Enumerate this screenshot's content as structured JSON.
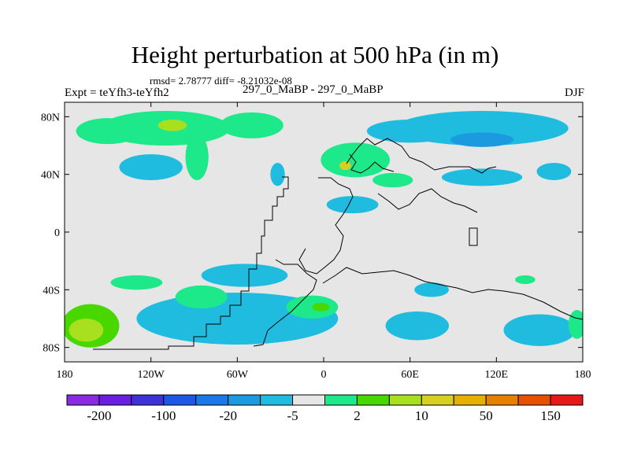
{
  "chart_data": {
    "type": "contour-map",
    "title": "Height perturbation at 500 hPa (in m)",
    "stats_text": "rmsd= 2.78777 diff= -8.21032e-08",
    "experiment_label": "Expt = teYfh3-teYfh2",
    "subtitle": "297_0_MaBP - 297_0_MaBP",
    "season": "DJF",
    "lon_range": [
      -180,
      180
    ],
    "lat_range": [
      -90,
      90
    ],
    "x_ticks": [
      {
        "value": -180,
        "label": "180"
      },
      {
        "value": -120,
        "label": "120W"
      },
      {
        "value": -60,
        "label": "60W"
      },
      {
        "value": 0,
        "label": "0"
      },
      {
        "value": 60,
        "label": "60E"
      },
      {
        "value": 120,
        "label": "120E"
      },
      {
        "value": 180,
        "label": "180"
      }
    ],
    "y_ticks": [
      {
        "value": 80,
        "label": "80N"
      },
      {
        "value": 40,
        "label": "40N"
      },
      {
        "value": 0,
        "label": "0"
      },
      {
        "value": -40,
        "label": "40S"
      },
      {
        "value": -80,
        "label": "80S"
      }
    ],
    "colorbar": {
      "colors": [
        "#8a2be2",
        "#6a1fe0",
        "#3c32d8",
        "#1e56e6",
        "#1a78e8",
        "#1c9ae0",
        "#20bce0",
        "#e6e6e6",
        "#1de88a",
        "#48d800",
        "#a8e020",
        "#d8d020",
        "#e6b000",
        "#e68000",
        "#e65000",
        "#e61818"
      ],
      "labels": [
        {
          "after_index": 0,
          "text": "-200"
        },
        {
          "after_index": 2,
          "text": "-100"
        },
        {
          "after_index": 4,
          "text": "-20"
        },
        {
          "after_index": 6,
          "text": "-5"
        },
        {
          "after_index": 8,
          "text": "2"
        },
        {
          "after_index": 10,
          "text": "10"
        },
        {
          "after_index": 12,
          "text": "50"
        },
        {
          "after_index": 14,
          "text": "150"
        }
      ]
    },
    "regions": [
      {
        "name": "nh-green-north-pacific",
        "level": 8,
        "lon": -110,
        "lat": 72,
        "rlon": 45,
        "rlat": 12
      },
      {
        "name": "nh-green-band-west",
        "level": 8,
        "lon": -150,
        "lat": 70,
        "rlon": 22,
        "rlat": 9
      },
      {
        "name": "nh-green-band-atlantic",
        "level": 8,
        "lon": -50,
        "lat": 74,
        "rlon": 22,
        "rlat": 9
      },
      {
        "name": "nh-green-ridge",
        "level": 8,
        "lon": -88,
        "lat": 52,
        "rlon": 8,
        "rlat": 16
      },
      {
        "name": "nh-lime-core",
        "level": 10,
        "lon": -105,
        "lat": 74,
        "rlon": 10,
        "rlat": 4
      },
      {
        "name": "nh-blue-pacific",
        "level": 6,
        "lon": -120,
        "lat": 45,
        "rlon": 22,
        "rlat": 9
      },
      {
        "name": "nh-green-europe",
        "level": 8,
        "lon": 22,
        "lat": 50,
        "rlon": 24,
        "rlat": 12
      },
      {
        "name": "nh-green-tail",
        "level": 8,
        "lon": 48,
        "lat": 36,
        "rlon": 14,
        "rlat": 5
      },
      {
        "name": "nh-yellow-core",
        "level": 11,
        "lon": 15,
        "lat": 46,
        "rlon": 4,
        "rlat": 3
      },
      {
        "name": "nh-blue-arctic",
        "level": 6,
        "lon": 110,
        "lat": 72,
        "rlon": 60,
        "rlat": 12
      },
      {
        "name": "nh-blue-arctic-west",
        "level": 6,
        "lon": 60,
        "lat": 70,
        "rlon": 30,
        "rlat": 8
      },
      {
        "name": "nh-blue-core",
        "level": 5,
        "lon": 110,
        "lat": 64,
        "rlon": 22,
        "rlat": 5
      },
      {
        "name": "nh-blue-east-asia",
        "level": 6,
        "lon": 110,
        "lat": 38,
        "rlon": 28,
        "rlat": 6
      },
      {
        "name": "nh-blue-atlantic",
        "level": 6,
        "lon": -32,
        "lat": 40,
        "rlon": 5,
        "rlat": 8
      },
      {
        "name": "nh-blue-mideast",
        "level": 6,
        "lon": 20,
        "lat": 19,
        "rlon": 18,
        "rlat": 6
      },
      {
        "name": "nh-blue-pacific-east",
        "level": 6,
        "lon": 160,
        "lat": 42,
        "rlon": 12,
        "rlat": 6
      },
      {
        "name": "sh-blue-subtropic",
        "level": 6,
        "lon": -55,
        "lat": -30,
        "rlon": 30,
        "rlat": 8
      },
      {
        "name": "sh-blue-band",
        "level": 6,
        "lon": -60,
        "lat": -60,
        "rlon": 70,
        "rlat": 18
      },
      {
        "name": "sh-green-southeast-pacific",
        "level": 8,
        "lon": -130,
        "lat": -35,
        "rlon": 18,
        "rlat": 5
      },
      {
        "name": "sh-green-mid-pacific",
        "level": 8,
        "lon": -85,
        "lat": -45,
        "rlon": 18,
        "rlat": 8
      },
      {
        "name": "sh-green-atlantic",
        "level": 8,
        "lon": -8,
        "lat": -52,
        "rlon": 18,
        "rlat": 8
      },
      {
        "name": "sh-lime-atlantic",
        "level": 9,
        "lon": -2,
        "lat": -52,
        "rlon": 6,
        "rlat": 3
      },
      {
        "name": "sh-green-far-west",
        "level": 9,
        "lon": -162,
        "lat": -65,
        "rlon": 20,
        "rlat": 15
      },
      {
        "name": "sh-yellow-far-west",
        "level": 10,
        "lon": -165,
        "lat": -68,
        "rlon": 12,
        "rlat": 8
      },
      {
        "name": "sh-blue-indian",
        "level": 6,
        "lon": 65,
        "lat": -65,
        "rlon": 22,
        "rlat": 10
      },
      {
        "name": "sh-blue-pacific",
        "level": 6,
        "lon": 150,
        "lat": -68,
        "rlon": 25,
        "rlat": 11
      },
      {
        "name": "sh-green-pacific-east",
        "level": 8,
        "lon": 176,
        "lat": -64,
        "rlon": 6,
        "rlat": 10
      },
      {
        "name": "sh-blue-small",
        "level": 6,
        "lon": 75,
        "lat": -40,
        "rlon": 12,
        "rlat": 5
      },
      {
        "name": "sh-green-small",
        "level": 8,
        "lon": 140,
        "lat": -33,
        "rlon": 7,
        "rlat": 3
      }
    ]
  }
}
